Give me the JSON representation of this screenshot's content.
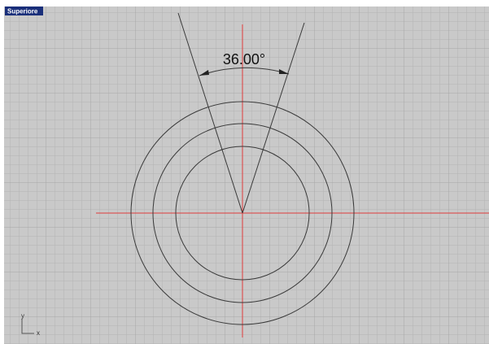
{
  "viewport": {
    "label": "Superiore"
  },
  "dimension": {
    "text": "36.00°"
  },
  "axis_icon": {
    "y": "y",
    "x": "x"
  }
}
